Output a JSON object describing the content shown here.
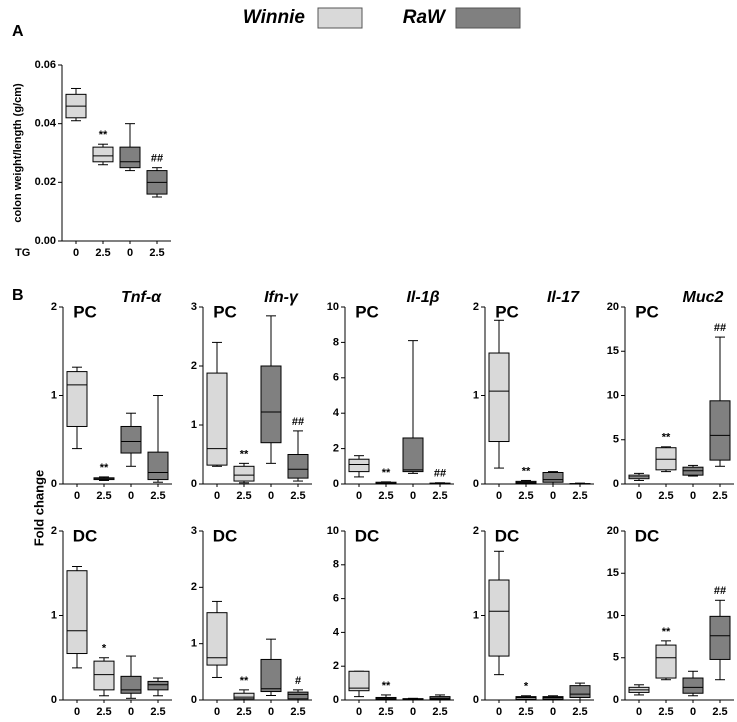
{
  "panel_a_label": "A",
  "panel_b_label": "B",
  "shared_y_label": "Fold change",
  "legend": [
    {
      "name": "Winnie",
      "color": "#d9d9d9"
    },
    {
      "name": "RaW",
      "color": "#808080"
    }
  ],
  "chart_data": [
    {
      "type": "box",
      "ylabel": "colon weight/length (g/cm)",
      "x_row_label": "TG",
      "categories": [
        "0",
        "2.5",
        "0",
        "2.5"
      ],
      "ylim": [
        0,
        0.06
      ],
      "yticks": [
        {
          "value": 0,
          "label": "0.00"
        },
        {
          "value": 0.02,
          "label": "0.02"
        },
        {
          "value": 0.04,
          "label": "0.04"
        },
        {
          "value": 0.06,
          "label": "0.06"
        }
      ],
      "boxes": [
        {
          "color": "#d9d9d9",
          "min": 0.041,
          "q1": 0.042,
          "median": 0.046,
          "q3": 0.05,
          "max": 0.052
        },
        {
          "color": "#d9d9d9",
          "min": 0.026,
          "q1": 0.027,
          "median": 0.029,
          "q3": 0.032,
          "max": 0.033,
          "label": "**"
        },
        {
          "color": "#808080",
          "min": 0.024,
          "q1": 0.025,
          "median": 0.027,
          "q3": 0.032,
          "max": 0.04
        },
        {
          "color": "#808080",
          "min": 0.015,
          "q1": 0.016,
          "median": 0.02,
          "q3": 0.024,
          "max": 0.025,
          "label": "##"
        }
      ]
    },
    {
      "type": "box",
      "region": "PC",
      "title": "Tnf-α",
      "categories": [
        "0",
        "2.5",
        "0",
        "2.5"
      ],
      "ylim": [
        0,
        2
      ],
      "yticks": [
        0,
        1,
        2
      ],
      "boxes": [
        {
          "color": "#d9d9d9",
          "min": 0.4,
          "q1": 0.65,
          "median": 1.12,
          "q3": 1.27,
          "max": 1.32
        },
        {
          "color": "#d9d9d9",
          "min": 0.04,
          "q1": 0.05,
          "median": 0.06,
          "q3": 0.07,
          "max": 0.08,
          "label": "**"
        },
        {
          "color": "#808080",
          "min": 0.2,
          "q1": 0.35,
          "median": 0.48,
          "q3": 0.65,
          "max": 0.8
        },
        {
          "color": "#808080",
          "min": 0.02,
          "q1": 0.05,
          "median": 0.13,
          "q3": 0.36,
          "max": 1.0
        }
      ]
    },
    {
      "type": "box",
      "region": "PC",
      "title": "Ifn-γ",
      "categories": [
        "0",
        "2.5",
        "0",
        "2.5"
      ],
      "ylim": [
        0,
        3
      ],
      "yticks": [
        0,
        1,
        2,
        3
      ],
      "boxes": [
        {
          "color": "#d9d9d9",
          "min": 0.3,
          "q1": 0.32,
          "median": 0.6,
          "q3": 1.88,
          "max": 2.4
        },
        {
          "color": "#d9d9d9",
          "min": 0.02,
          "q1": 0.05,
          "median": 0.15,
          "q3": 0.3,
          "max": 0.35,
          "label": "**"
        },
        {
          "color": "#808080",
          "min": 0.35,
          "q1": 0.7,
          "median": 1.22,
          "q3": 2.0,
          "max": 2.85
        },
        {
          "color": "#808080",
          "min": 0.05,
          "q1": 0.1,
          "median": 0.25,
          "q3": 0.5,
          "max": 0.9,
          "label": "##"
        }
      ]
    },
    {
      "type": "box",
      "region": "PC",
      "title": "Il-1β",
      "categories": [
        "0",
        "2.5",
        "0",
        "2.5"
      ],
      "ylim": [
        0,
        10
      ],
      "yticks": [
        0,
        2,
        4,
        6,
        8,
        10
      ],
      "boxes": [
        {
          "color": "#d9d9d9",
          "min": 0.4,
          "q1": 0.7,
          "median": 1.1,
          "q3": 1.4,
          "max": 1.6
        },
        {
          "color": "#d9d9d9",
          "min": 0,
          "q1": 0.02,
          "median": 0.05,
          "q3": 0.1,
          "max": 0.12,
          "label": "**"
        },
        {
          "color": "#808080",
          "min": 0.6,
          "q1": 0.7,
          "median": 0.8,
          "q3": 2.6,
          "max": 8.1
        },
        {
          "color": "#808080",
          "min": 0,
          "q1": 0.01,
          "median": 0.03,
          "q3": 0.05,
          "max": 0.07,
          "label": "##"
        }
      ]
    },
    {
      "type": "box",
      "region": "PC",
      "title": "Il-17",
      "categories": [
        "0",
        "2.5",
        "0",
        "2.5"
      ],
      "ylim": [
        0,
        2
      ],
      "yticks": [
        0,
        1,
        2
      ],
      "boxes": [
        {
          "color": "#d9d9d9",
          "min": 0.18,
          "q1": 0.48,
          "median": 1.05,
          "q3": 1.48,
          "max": 1.85
        },
        {
          "color": "#d9d9d9",
          "min": 0,
          "q1": 0.01,
          "median": 0.02,
          "q3": 0.03,
          "max": 0.04,
          "label": "**"
        },
        {
          "color": "#808080",
          "min": 0,
          "q1": 0.02,
          "median": 0.05,
          "q3": 0.13,
          "max": 0.14
        },
        {
          "color": "#808080",
          "min": 0,
          "q1": 0,
          "median": 0,
          "q3": 0.005,
          "max": 0.01
        }
      ]
    },
    {
      "type": "box",
      "region": "PC",
      "title": "Muc2",
      "categories": [
        "0",
        "2.5",
        "0",
        "2.5"
      ],
      "ylim": [
        0,
        20
      ],
      "yticks": [
        0,
        5,
        10,
        15,
        20
      ],
      "boxes": [
        {
          "color": "#d9d9d9",
          "min": 0.4,
          "q1": 0.6,
          "median": 0.8,
          "q3": 1.0,
          "max": 1.2
        },
        {
          "color": "#d9d9d9",
          "min": 1.4,
          "q1": 1.6,
          "median": 2.8,
          "q3": 4.1,
          "max": 4.2,
          "label": "**"
        },
        {
          "color": "#808080",
          "min": 0.9,
          "q1": 1.0,
          "median": 1.5,
          "q3": 1.9,
          "max": 2.1
        },
        {
          "color": "#808080",
          "min": 2.0,
          "q1": 2.7,
          "median": 5.5,
          "q3": 9.4,
          "max": 16.6,
          "label": "##"
        }
      ]
    },
    {
      "type": "box",
      "region": "DC",
      "categories": [
        "0",
        "2.5",
        "0",
        "2.5"
      ],
      "ylim": [
        0,
        2
      ],
      "yticks": [
        0,
        1,
        2
      ],
      "boxes": [
        {
          "color": "#d9d9d9",
          "min": 0.38,
          "q1": 0.55,
          "median": 0.82,
          "q3": 1.53,
          "max": 1.58
        },
        {
          "color": "#d9d9d9",
          "min": 0.05,
          "q1": 0.12,
          "median": 0.3,
          "q3": 0.46,
          "max": 0.5,
          "label": "*"
        },
        {
          "color": "#808080",
          "min": 0.02,
          "q1": 0.08,
          "median": 0.12,
          "q3": 0.28,
          "max": 0.52
        },
        {
          "color": "#808080",
          "min": 0.05,
          "q1": 0.12,
          "median": 0.18,
          "q3": 0.22,
          "max": 0.26
        }
      ]
    },
    {
      "type": "box",
      "region": "DC",
      "categories": [
        "0",
        "2.5",
        "0",
        "2.5"
      ],
      "ylim": [
        0,
        3
      ],
      "yticks": [
        0,
        1,
        2,
        3
      ],
      "boxes": [
        {
          "color": "#d9d9d9",
          "min": 0.4,
          "q1": 0.62,
          "median": 0.75,
          "q3": 1.55,
          "max": 1.75
        },
        {
          "color": "#d9d9d9",
          "min": 0,
          "q1": 0.02,
          "median": 0.05,
          "q3": 0.12,
          "max": 0.18,
          "label": "**"
        },
        {
          "color": "#808080",
          "min": 0.08,
          "q1": 0.15,
          "median": 0.2,
          "q3": 0.72,
          "max": 1.08
        },
        {
          "color": "#808080",
          "min": 0,
          "q1": 0.02,
          "median": 0.1,
          "q3": 0.14,
          "max": 0.18,
          "label": "#"
        }
      ]
    },
    {
      "type": "box",
      "region": "DC",
      "categories": [
        "0",
        "2.5",
        "0",
        "2.5"
      ],
      "ylim": [
        0,
        10
      ],
      "yticks": [
        0,
        2,
        4,
        6,
        8,
        10
      ],
      "boxes": [
        {
          "color": "#d9d9d9",
          "min": 0.2,
          "q1": 0.55,
          "median": 0.7,
          "q3": 1.7,
          "max": 1.7
        },
        {
          "color": "#d9d9d9",
          "min": 0,
          "q1": 0.05,
          "median": 0.1,
          "q3": 0.15,
          "max": 0.3,
          "label": "**"
        },
        {
          "color": "#808080",
          "min": 0,
          "q1": 0.02,
          "median": 0.05,
          "q3": 0.08,
          "max": 0.1
        },
        {
          "color": "#808080",
          "min": 0,
          "q1": 0.05,
          "median": 0.1,
          "q3": 0.2,
          "max": 0.3
        }
      ]
    },
    {
      "type": "box",
      "region": "DC",
      "categories": [
        "0",
        "2.5",
        "0",
        "2.5"
      ],
      "ylim": [
        0,
        2
      ],
      "yticks": [
        0,
        1,
        2
      ],
      "boxes": [
        {
          "color": "#d9d9d9",
          "min": 0.3,
          "q1": 0.52,
          "median": 1.05,
          "q3": 1.42,
          "max": 1.76
        },
        {
          "color": "#d9d9d9",
          "min": 0,
          "q1": 0.01,
          "median": 0.03,
          "q3": 0.04,
          "max": 0.05,
          "label": "*"
        },
        {
          "color": "#808080",
          "min": 0,
          "q1": 0.01,
          "median": 0.03,
          "q3": 0.04,
          "max": 0.05
        },
        {
          "color": "#808080",
          "min": 0,
          "q1": 0.03,
          "median": 0.07,
          "q3": 0.17,
          "max": 0.2
        }
      ]
    },
    {
      "type": "box",
      "region": "DC",
      "categories": [
        "0",
        "2.5",
        "0",
        "2.5"
      ],
      "ylim": [
        0,
        20
      ],
      "yticks": [
        0,
        5,
        10,
        15,
        20
      ],
      "boxes": [
        {
          "color": "#d9d9d9",
          "min": 0.6,
          "q1": 0.9,
          "median": 1.2,
          "q3": 1.5,
          "max": 1.8
        },
        {
          "color": "#d9d9d9",
          "min": 2.4,
          "q1": 2.6,
          "median": 5.0,
          "q3": 6.5,
          "max": 7.0,
          "label": "**"
        },
        {
          "color": "#808080",
          "min": 0.5,
          "q1": 0.8,
          "median": 1.5,
          "q3": 2.6,
          "max": 3.4
        },
        {
          "color": "#808080",
          "min": 2.4,
          "q1": 4.8,
          "median": 7.6,
          "q3": 9.9,
          "max": 11.8,
          "label": "##"
        }
      ]
    }
  ]
}
